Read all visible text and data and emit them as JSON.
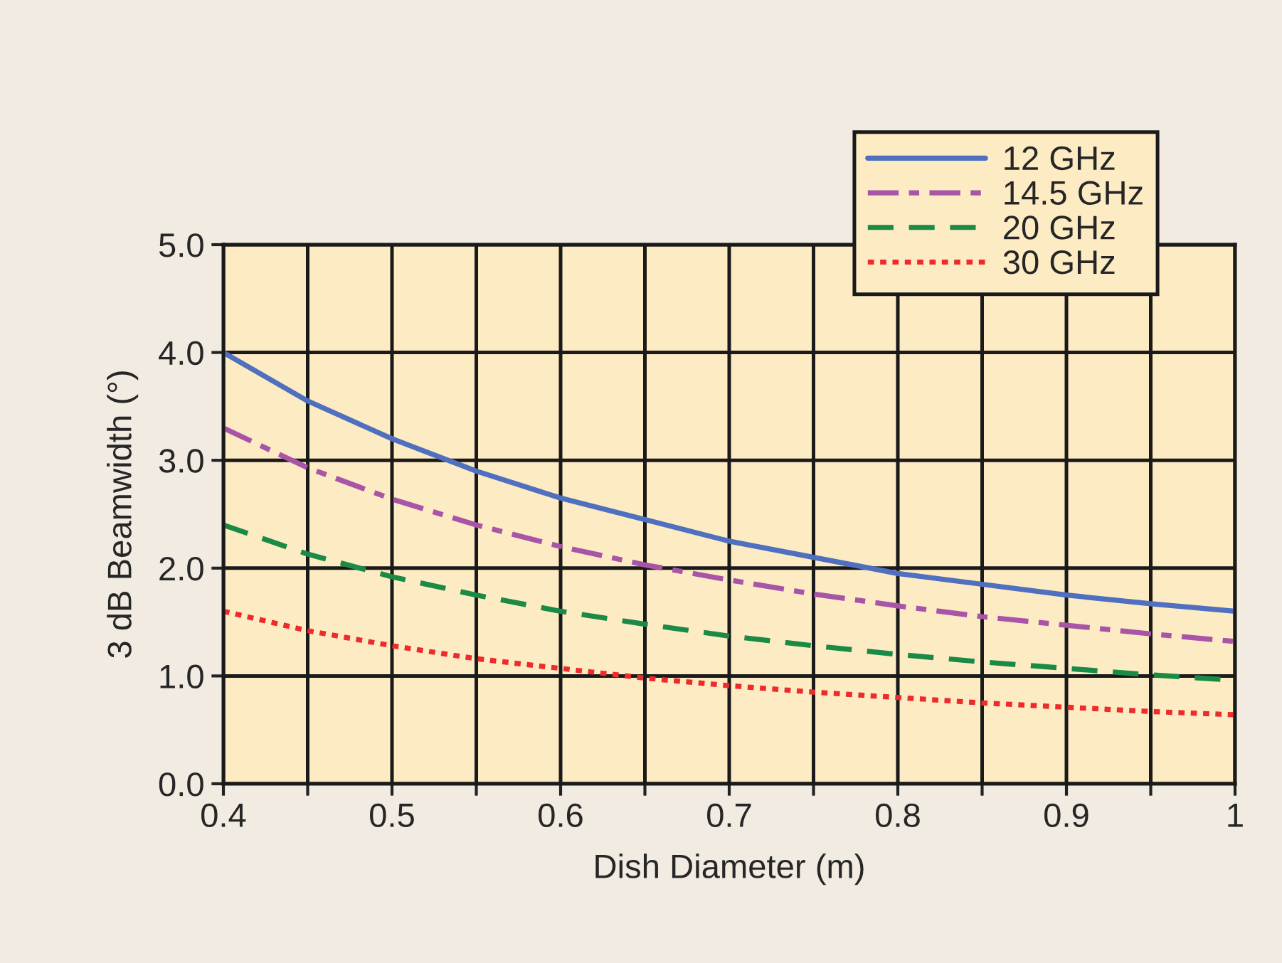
{
  "chart_data": {
    "type": "line",
    "xlabel": "Dish Diameter (m)",
    "ylabel": "3 dB Beamwidth (°)",
    "x": [
      0.4,
      0.45,
      0.5,
      0.55,
      0.6,
      0.65,
      0.7,
      0.75,
      0.8,
      0.85,
      0.9,
      0.95,
      1.0
    ],
    "series": [
      {
        "name": "12 GHz",
        "color": "#4f6fbf",
        "line_style": "solid",
        "values": [
          4.0,
          3.55,
          3.2,
          2.9,
          2.65,
          2.45,
          2.25,
          2.1,
          1.95,
          1.85,
          1.75,
          1.67,
          1.6
        ]
      },
      {
        "name": "14.5 GHz",
        "color": "#a855a8",
        "line_style": "dashdot",
        "values": [
          3.3,
          2.93,
          2.64,
          2.4,
          2.2,
          2.03,
          1.89,
          1.76,
          1.65,
          1.55,
          1.47,
          1.39,
          1.32
        ]
      },
      {
        "name": "20 GHz",
        "color": "#1a8a45",
        "line_style": "dashed",
        "values": [
          2.4,
          2.13,
          1.92,
          1.75,
          1.6,
          1.48,
          1.37,
          1.28,
          1.2,
          1.13,
          1.07,
          1.01,
          0.96
        ]
      },
      {
        "name": "30 GHz",
        "color": "#ee2a2a",
        "line_style": "dotted",
        "values": [
          1.6,
          1.42,
          1.28,
          1.16,
          1.07,
          0.98,
          0.91,
          0.85,
          0.8,
          0.75,
          0.71,
          0.67,
          0.64
        ]
      }
    ],
    "xlim": [
      0.4,
      1.0
    ],
    "xticks": [
      0.4,
      {
        "value": 0.45,
        "label": null
      },
      0.5,
      {
        "value": 0.55,
        "label": null
      },
      0.6,
      {
        "value": 0.65,
        "label": null
      },
      0.7,
      {
        "value": 0.75,
        "label": null
      },
      0.8,
      {
        "value": 0.85,
        "label": null
      },
      0.9,
      {
        "value": 0.95,
        "label": null
      },
      {
        "value": 1.0,
        "label": "1"
      }
    ],
    "ylim": [
      0,
      5
    ],
    "yticks": [
      {
        "value": 0,
        "label": "0.0"
      },
      {
        "value": 1,
        "label": "1.0"
      },
      {
        "value": 2,
        "label": "2.0"
      },
      {
        "value": 3,
        "label": "3.0"
      },
      {
        "value": 4,
        "label": "4.0"
      },
      {
        "value": 5,
        "label": "5.0"
      }
    ],
    "grid": true,
    "legend": "top right",
    "marker": "none"
  }
}
